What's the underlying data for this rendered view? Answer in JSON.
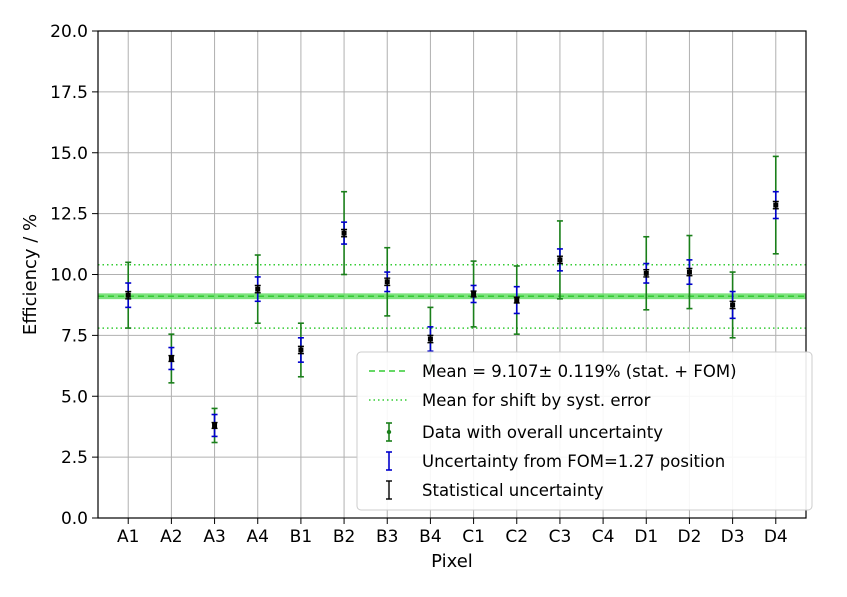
{
  "chart_data": {
    "type": "scatter",
    "title": "",
    "xlabel": "Pixel",
    "ylabel": "Efficiency / %",
    "ylim": [
      0,
      20
    ],
    "yticks": [
      "0.0",
      "2.5",
      "5.0",
      "7.5",
      "10.0",
      "12.5",
      "15.0",
      "17.5",
      "20.0"
    ],
    "yticks_values": [
      0,
      2.5,
      5,
      7.5,
      10,
      12.5,
      15,
      17.5,
      20
    ],
    "grid": true,
    "legend_position": "lower-right",
    "categories": [
      "A1",
      "A2",
      "A3",
      "A4",
      "B1",
      "B2",
      "B3",
      "B4",
      "C1",
      "C2",
      "C3",
      "C4",
      "D1",
      "D2",
      "D3",
      "D4"
    ],
    "values": [
      9.15,
      6.55,
      3.8,
      9.4,
      6.9,
      11.7,
      9.7,
      7.35,
      9.2,
      8.95,
      10.6,
      null,
      10.05,
      10.1,
      8.75,
      12.85
    ],
    "overall_uncertainty": [
      1.35,
      1.0,
      0.7,
      1.4,
      1.1,
      1.7,
      1.4,
      1.3,
      1.35,
      1.4,
      1.6,
      null,
      1.5,
      1.5,
      1.35,
      2.0
    ],
    "fom_uncertainty": [
      0.5,
      0.45,
      0.45,
      0.5,
      0.5,
      0.45,
      0.4,
      0.5,
      0.35,
      0.55,
      0.45,
      null,
      0.4,
      0.5,
      0.55,
      0.55
    ],
    "stat_uncertainty": [
      0.15,
      0.12,
      0.12,
      0.15,
      0.15,
      0.15,
      0.15,
      0.15,
      0.12,
      0.12,
      0.15,
      null,
      0.15,
      0.15,
      0.15,
      0.15
    ],
    "mean": 9.107,
    "mean_band": 0.119,
    "shift_lines": [
      10.4,
      7.8
    ],
    "legend": [
      "Mean = 9.107± 0.119% (stat. + FOM)",
      "Mean for shift by syst. error",
      "Data with overall uncertainty",
      "Uncertainty from FOM=1.27 position",
      "Statistical uncertainty"
    ],
    "colors": {
      "overall": "#1a7f1a",
      "fom": "#0000cc",
      "stat": "#000000",
      "mean_line": "#33cc33",
      "mean_band": "#66dd66",
      "grid": "#b0b0b0"
    }
  }
}
